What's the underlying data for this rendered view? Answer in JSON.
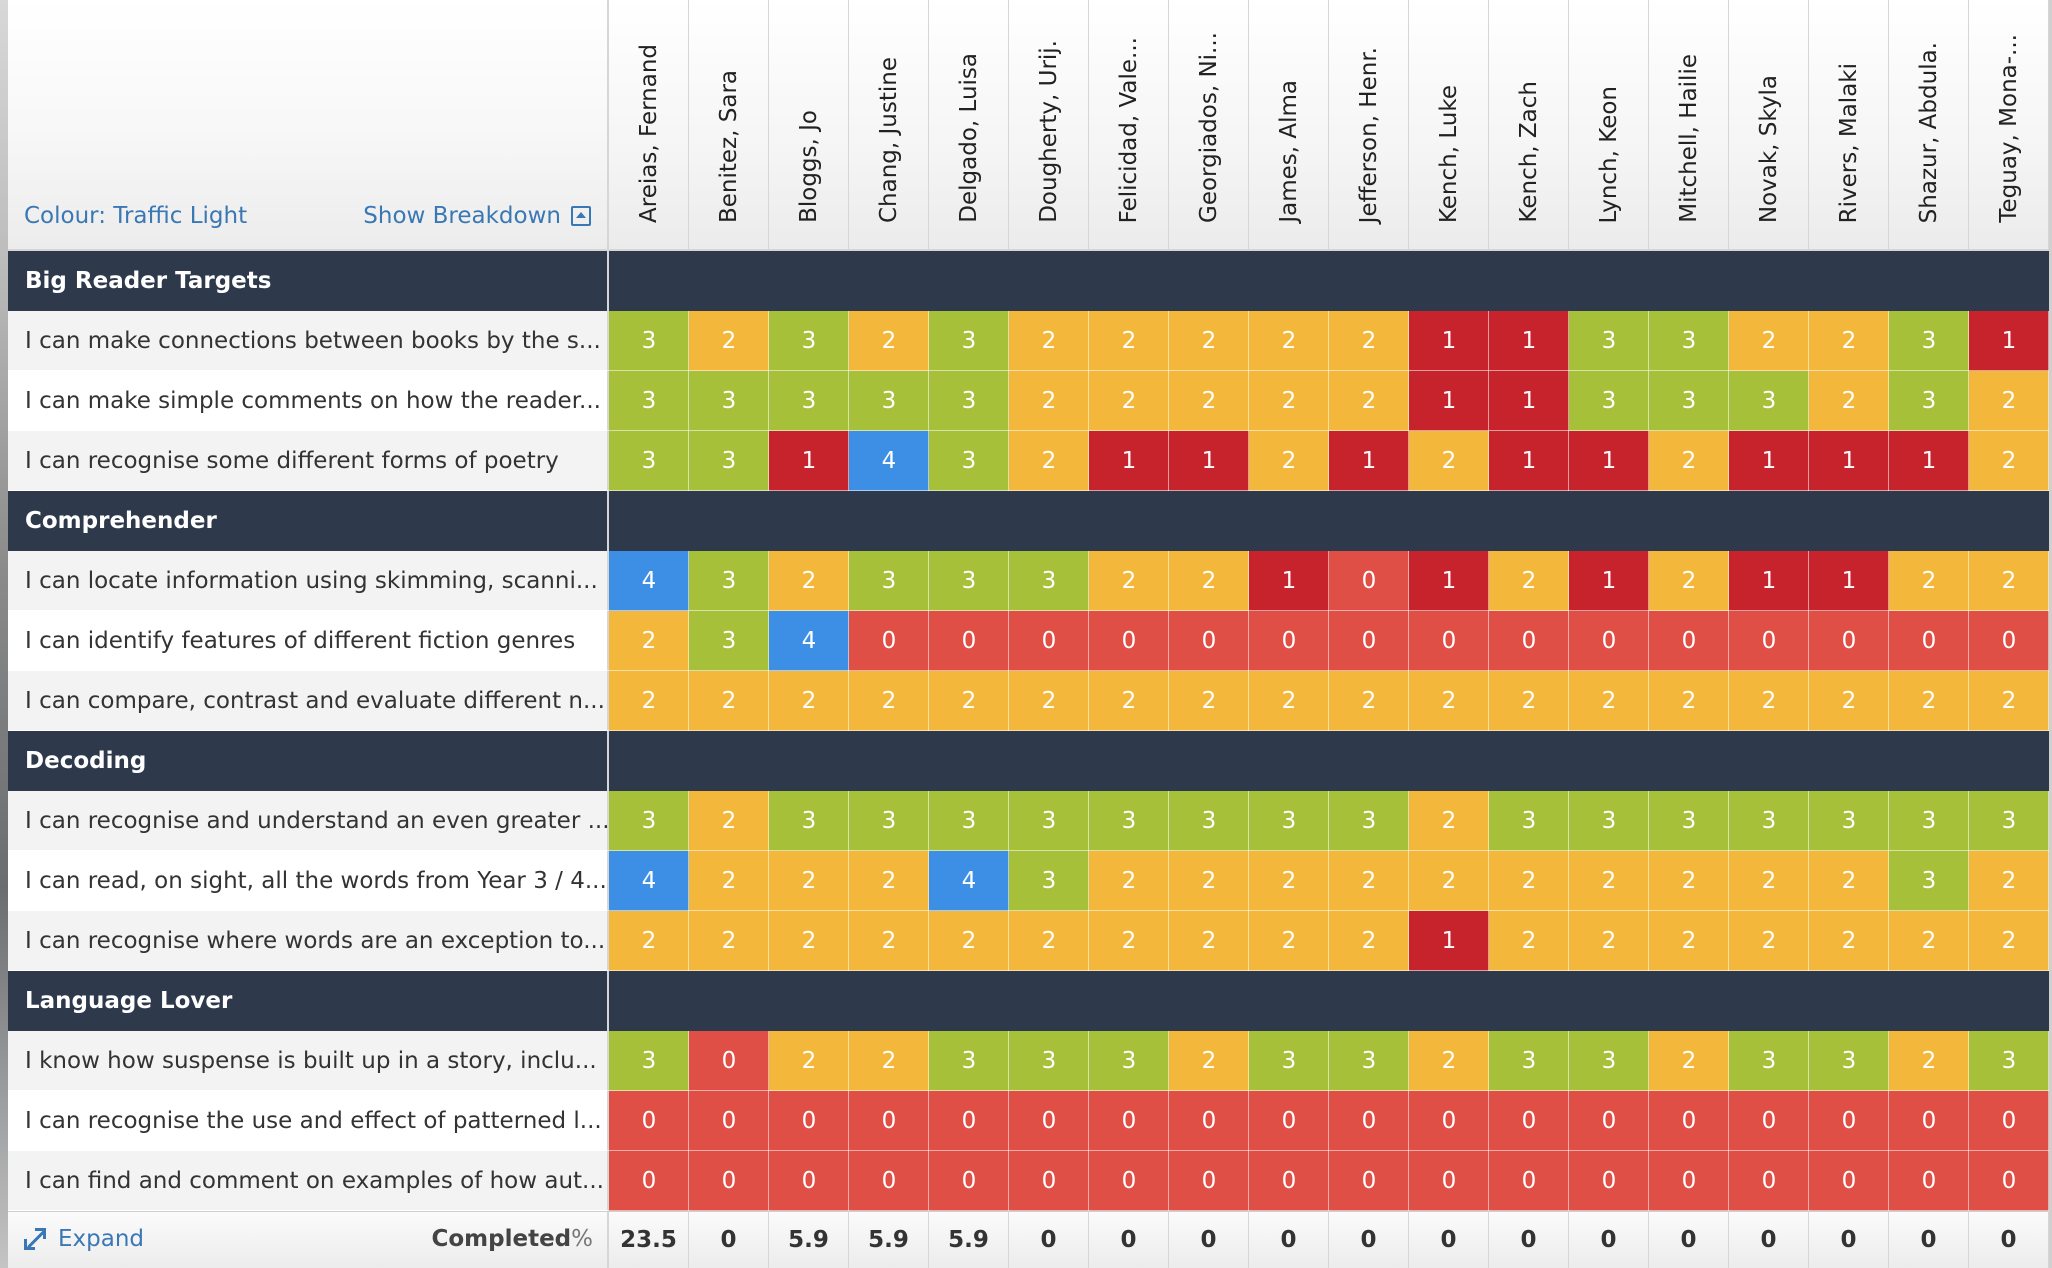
{
  "header": {
    "colour_label": "Colour: Traffic Light",
    "breakdown_label": "Show Breakdown",
    "students": [
      "Areias, Fernand",
      "Benitez, Sara",
      "Bloggs, Jo",
      "Chang, Justine",
      "Delgado, Luisa",
      "Dougherty, Urij.",
      "Felicidad, Vale...",
      "Georgiados, Ni...",
      "James, Alma",
      "Jefferson, Henr.",
      "Kench, Luke",
      "Kench, Zach",
      "Lynch, Keon",
      "Mitchell, Hailie",
      "Novak, Skyla",
      "Rivers, Malaki",
      "Shazur, Abdula.",
      "Teguay, Mona-..."
    ]
  },
  "colors": {
    "0": "#e04f45",
    "1": "#c7232c",
    "2": "#f2b73b",
    "3": "#a7c03a",
    "4": "#3d8ee5",
    "group_bar": "#2e3a4c",
    "link": "#3a78b5"
  },
  "groups": [
    {
      "name": "Big Reader Targets",
      "rows": [
        {
          "label": "I can make connections between books by the s...",
          "values": [
            3,
            2,
            3,
            2,
            3,
            2,
            2,
            2,
            2,
            2,
            1,
            1,
            3,
            3,
            2,
            2,
            3,
            1
          ]
        },
        {
          "label": "I can make simple comments on how the reader...",
          "values": [
            3,
            3,
            3,
            3,
            3,
            2,
            2,
            2,
            2,
            2,
            1,
            1,
            3,
            3,
            3,
            2,
            3,
            2
          ]
        },
        {
          "label": "I can recognise some different forms of poetry",
          "values": [
            3,
            3,
            1,
            4,
            3,
            2,
            1,
            1,
            2,
            1,
            2,
            1,
            1,
            2,
            1,
            1,
            1,
            2
          ]
        }
      ]
    },
    {
      "name": "Comprehender",
      "rows": [
        {
          "label": "I can locate information using skimming, scanni...",
          "values": [
            4,
            3,
            2,
            3,
            3,
            3,
            2,
            2,
            1,
            0,
            1,
            2,
            1,
            2,
            1,
            1,
            2,
            2
          ]
        },
        {
          "label": "I can identify features of different fiction genres",
          "values": [
            2,
            3,
            4,
            0,
            0,
            0,
            0,
            0,
            0,
            0,
            0,
            0,
            0,
            0,
            0,
            0,
            0,
            0
          ]
        },
        {
          "label": "I can compare, contrast and evaluate different n...",
          "values": [
            2,
            2,
            2,
            2,
            2,
            2,
            2,
            2,
            2,
            2,
            2,
            2,
            2,
            2,
            2,
            2,
            2,
            2
          ]
        }
      ]
    },
    {
      "name": "Decoding",
      "rows": [
        {
          "label": "I can recognise and understand an even greater ...",
          "values": [
            3,
            2,
            3,
            3,
            3,
            3,
            3,
            3,
            3,
            3,
            2,
            3,
            3,
            3,
            3,
            3,
            3,
            3
          ]
        },
        {
          "label": "I can read, on sight, all the words from Year 3 / 4...",
          "values": [
            4,
            2,
            2,
            2,
            4,
            3,
            2,
            2,
            2,
            2,
            2,
            2,
            2,
            2,
            2,
            2,
            3,
            2
          ]
        },
        {
          "label": "I can recognise where words are an exception to...",
          "values": [
            2,
            2,
            2,
            2,
            2,
            2,
            2,
            2,
            2,
            2,
            1,
            2,
            2,
            2,
            2,
            2,
            2,
            2
          ]
        }
      ]
    },
    {
      "name": "Language Lover",
      "rows": [
        {
          "label": "I know how suspense is built up in a story, inclu...",
          "values": [
            3,
            0,
            2,
            2,
            3,
            3,
            3,
            2,
            3,
            3,
            2,
            3,
            3,
            2,
            3,
            3,
            2,
            3
          ]
        },
        {
          "label": "I can recognise the use and effect of patterned l...",
          "values": [
            0,
            0,
            0,
            0,
            0,
            0,
            0,
            0,
            0,
            0,
            0,
            0,
            0,
            0,
            0,
            0,
            0,
            0
          ]
        },
        {
          "label": "I can find and comment on examples of how aut...",
          "values": [
            0,
            0,
            0,
            0,
            0,
            0,
            0,
            0,
            0,
            0,
            0,
            0,
            0,
            0,
            0,
            0,
            0,
            0
          ]
        }
      ]
    }
  ],
  "footer": {
    "expand_label": "Expand",
    "completed_label": "Completed",
    "completed_unit": "%",
    "completed": [
      "23.5",
      "0",
      "5.9",
      "5.9",
      "5.9",
      "0",
      "0",
      "0",
      "0",
      "0",
      "0",
      "0",
      "0",
      "0",
      "0",
      "0",
      "0",
      "0"
    ]
  }
}
